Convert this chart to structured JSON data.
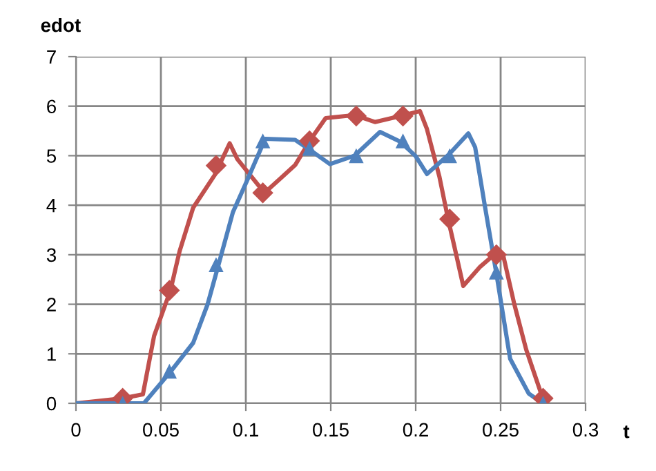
{
  "chart_data": {
    "type": "line",
    "xlabel": "t",
    "ylabel": "edot",
    "xlim": [
      0,
      0.3
    ],
    "xticks": [
      0,
      0.05,
      0.1,
      0.15,
      0.2,
      0.25,
      0.3
    ],
    "ylim": [
      0,
      7
    ],
    "yticks": [
      0,
      1,
      2,
      3,
      4,
      5,
      6,
      7
    ],
    "grid": true,
    "legend": false,
    "series": [
      {
        "color": "#c0504d",
        "marker": "none",
        "x": [
          0,
          0.0275,
          0.0394,
          0.046,
          0.0557,
          0.061,
          0.069,
          0.0815,
          0.0905,
          0.095,
          0.111,
          0.121,
          0.129,
          0.138,
          0.147,
          0.164,
          0.176,
          0.191,
          0.2025,
          0.2066,
          0.214,
          0.219,
          0.223,
          0.228,
          0.238,
          0.2475,
          0.2515,
          0.258,
          0.265,
          0.2747
        ],
        "values": [
          0,
          0.1,
          0.18,
          1.36,
          2.29,
          3.07,
          3.95,
          4.6,
          5.25,
          4.93,
          4.25,
          4.56,
          4.81,
          5.32,
          5.76,
          5.82,
          5.68,
          5.8,
          5.9,
          5.54,
          4.57,
          3.73,
          3.13,
          2.37,
          2.76,
          3.04,
          2.99,
          2.01,
          1.09,
          0.11
        ]
      },
      {
        "color": "#4f81bd",
        "marker": "none",
        "x": [
          0,
          0.0275,
          0.04,
          0.0557,
          0.069,
          0.0775,
          0.0837,
          0.0924,
          0.1005,
          0.1114,
          0.129,
          0.138,
          0.1495,
          0.164,
          0.179,
          0.191,
          0.2,
          0.2066,
          0.2197,
          0.231,
          0.235,
          0.2406,
          0.2475,
          0.2556,
          0.2665,
          0.2747
        ],
        "values": [
          0,
          0,
          0,
          0.64,
          1.22,
          2.0,
          2.77,
          3.86,
          4.48,
          5.34,
          5.32,
          5.11,
          4.83,
          5.0,
          5.48,
          5.28,
          4.99,
          4.63,
          5.03,
          5.45,
          5.17,
          4.01,
          2.62,
          0.9,
          0.2,
          0
        ]
      },
      {
        "type": "scatter",
        "color": "#c0504d",
        "marker": "diamond",
        "x": [
          0.0275,
          0.055,
          0.0825,
          0.11,
          0.1375,
          0.165,
          0.1925,
          0.22,
          0.2475,
          0.275
        ],
        "values": [
          0.1,
          2.28,
          4.8,
          4.25,
          5.3,
          5.8,
          5.8,
          3.72,
          3.0,
          0.1
        ]
      },
      {
        "type": "scatter",
        "color": "#4f81bd",
        "marker": "triangle",
        "x": [
          0.0275,
          0.055,
          0.0825,
          0.11,
          0.1375,
          0.165,
          0.1925,
          0.22,
          0.2475,
          0.275
        ],
        "values": [
          0,
          0.65,
          2.8,
          5.3,
          5.15,
          5.0,
          5.3,
          5.0,
          2.65,
          0
        ]
      }
    ]
  }
}
